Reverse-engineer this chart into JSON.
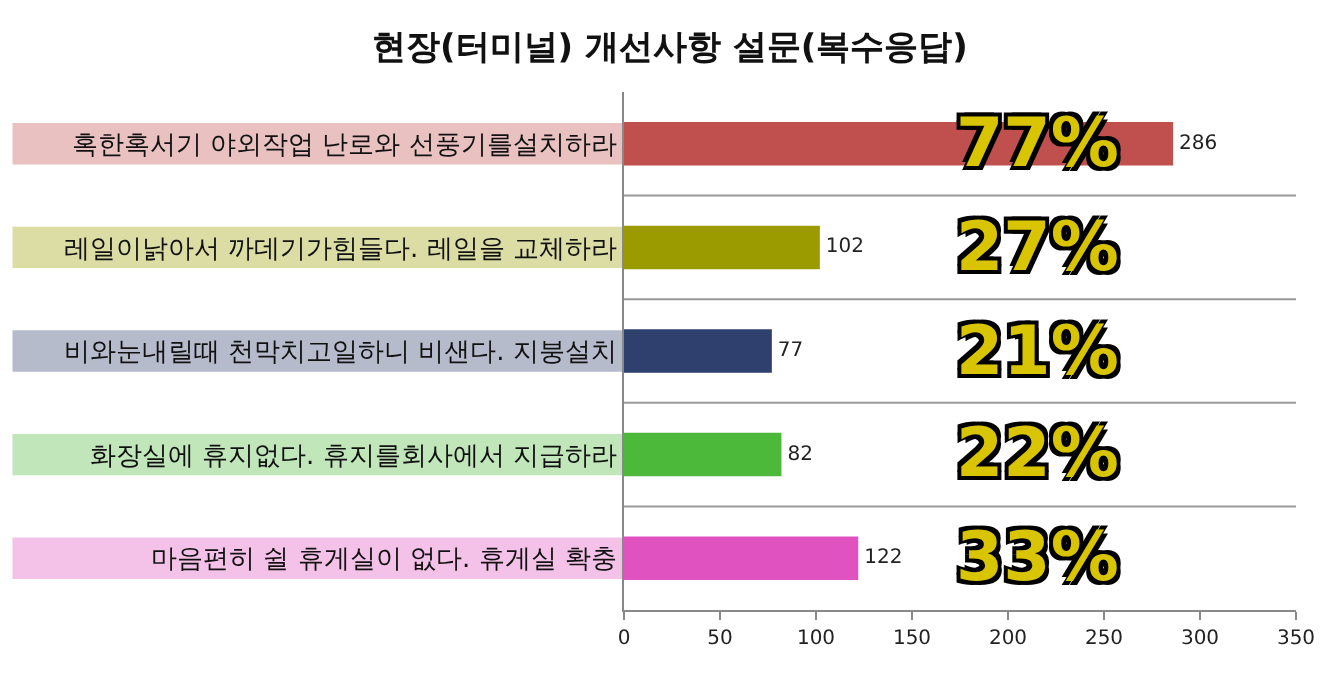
{
  "chart_data": {
    "type": "bar",
    "orientation": "horizontal",
    "title": "현장(터미널) 개선사항 설문(복수응답)",
    "categories": [
      "혹한혹서기 야외작업 난로와 선풍기를설치하라",
      "레일이낡아서 까데기가힘들다. 레일을 교체하라",
      "비와눈내릴때 천막치고일하니 비샌다. 지붕설치",
      "화장실에 휴지없다. 휴지를회사에서 지급하라",
      "마음편히 쉴 휴게실이 없다. 휴게실 확충"
    ],
    "values": [
      286,
      102,
      77,
      82,
      122
    ],
    "colors": [
      "#c0504d",
      "#9b9b00",
      "#2f3f6e",
      "#4cb93a",
      "#e052c0"
    ],
    "data_labels": true,
    "xlim": [
      0,
      350
    ],
    "xticks": [
      0,
      50,
      100,
      150,
      200,
      250,
      300,
      350
    ],
    "annotations": [
      "77%",
      "27%",
      "21%",
      "22%",
      "33%"
    ]
  }
}
